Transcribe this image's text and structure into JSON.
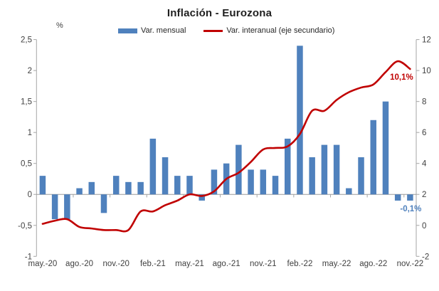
{
  "title": "Inflación - Eurozona",
  "left_axis_unit": "%",
  "legend": [
    {
      "label": "Var. mensual",
      "swatch": "bar",
      "color": "#4F81BD"
    },
    {
      "label": "Var. interanual (eje secundario)",
      "swatch": "line",
      "color": "#C00000"
    }
  ],
  "chart_data": {
    "type": "bar+line",
    "categories": [
      "may.-20",
      "jun.-20",
      "jul.-20",
      "ago.-20",
      "sep.-20",
      "oct.-20",
      "nov.-20",
      "dic.-20",
      "ene.-21",
      "feb.-21",
      "mar.-21",
      "abr.-21",
      "may.-21",
      "jun.-21",
      "jul.-21",
      "ago.-21",
      "sep.-21",
      "oct.-21",
      "nov.-21",
      "dic.-21",
      "ene.-22",
      "feb.-22",
      "mar.-22",
      "abr.-22",
      "may.-22",
      "jun.-22",
      "jul.-22",
      "ago.-22",
      "sep.-22",
      "oct.-22",
      "nov.-22"
    ],
    "x_axis_labels_shown": [
      "may.-20",
      "ago.-20",
      "nov.-20",
      "feb.-21",
      "may.-21",
      "ago.-21",
      "nov.-21",
      "feb.-22",
      "may.-22",
      "ago.-22",
      "nov.-22"
    ],
    "series": [
      {
        "name": "Var. mensual",
        "type": "bar",
        "axis": "left",
        "color": "#4F81BD",
        "values": [
          0.3,
          -0.4,
          -0.4,
          0.1,
          0.2,
          -0.3,
          0.3,
          0.2,
          0.2,
          0.9,
          0.6,
          0.3,
          0.3,
          -0.1,
          0.4,
          0.5,
          0.8,
          0.4,
          0.4,
          0.3,
          0.9,
          2.4,
          0.6,
          0.8,
          0.8,
          0.1,
          0.6,
          1.2,
          1.5,
          -0.1,
          -0.1
        ]
      },
      {
        "name": "Var. interanual (eje secundario)",
        "type": "line",
        "axis": "right",
        "smooth": true,
        "color": "#C00000",
        "values": [
          0.1,
          0.3,
          0.4,
          -0.1,
          -0.2,
          -0.3,
          -0.3,
          -0.3,
          0.9,
          0.9,
          1.3,
          1.6,
          2.0,
          1.9,
          2.2,
          3.0,
          3.4,
          4.1,
          4.9,
          5.0,
          5.1,
          5.9,
          7.4,
          7.4,
          8.1,
          8.6,
          8.9,
          9.1,
          9.9,
          10.6,
          10.1
        ]
      }
    ],
    "left_axis": {
      "unit": "%",
      "min": -1,
      "max": 2.5,
      "tick_labels": [
        "2,5",
        "2",
        "1,5",
        "1",
        "0,5",
        "0",
        "-0,5",
        "-1"
      ]
    },
    "right_axis": {
      "min": -2,
      "max": 12,
      "tick_labels": [
        "12",
        "10",
        "8",
        "6",
        "4",
        "2",
        "0",
        "-2"
      ]
    },
    "annotations": [
      {
        "text": "10,1%",
        "anchor": "line-end",
        "color": "#C00000"
      },
      {
        "text": "-0,1%",
        "anchor": "last-bar",
        "color": "#4F81BD"
      }
    ],
    "gridlines": false,
    "legend_position": "top"
  }
}
